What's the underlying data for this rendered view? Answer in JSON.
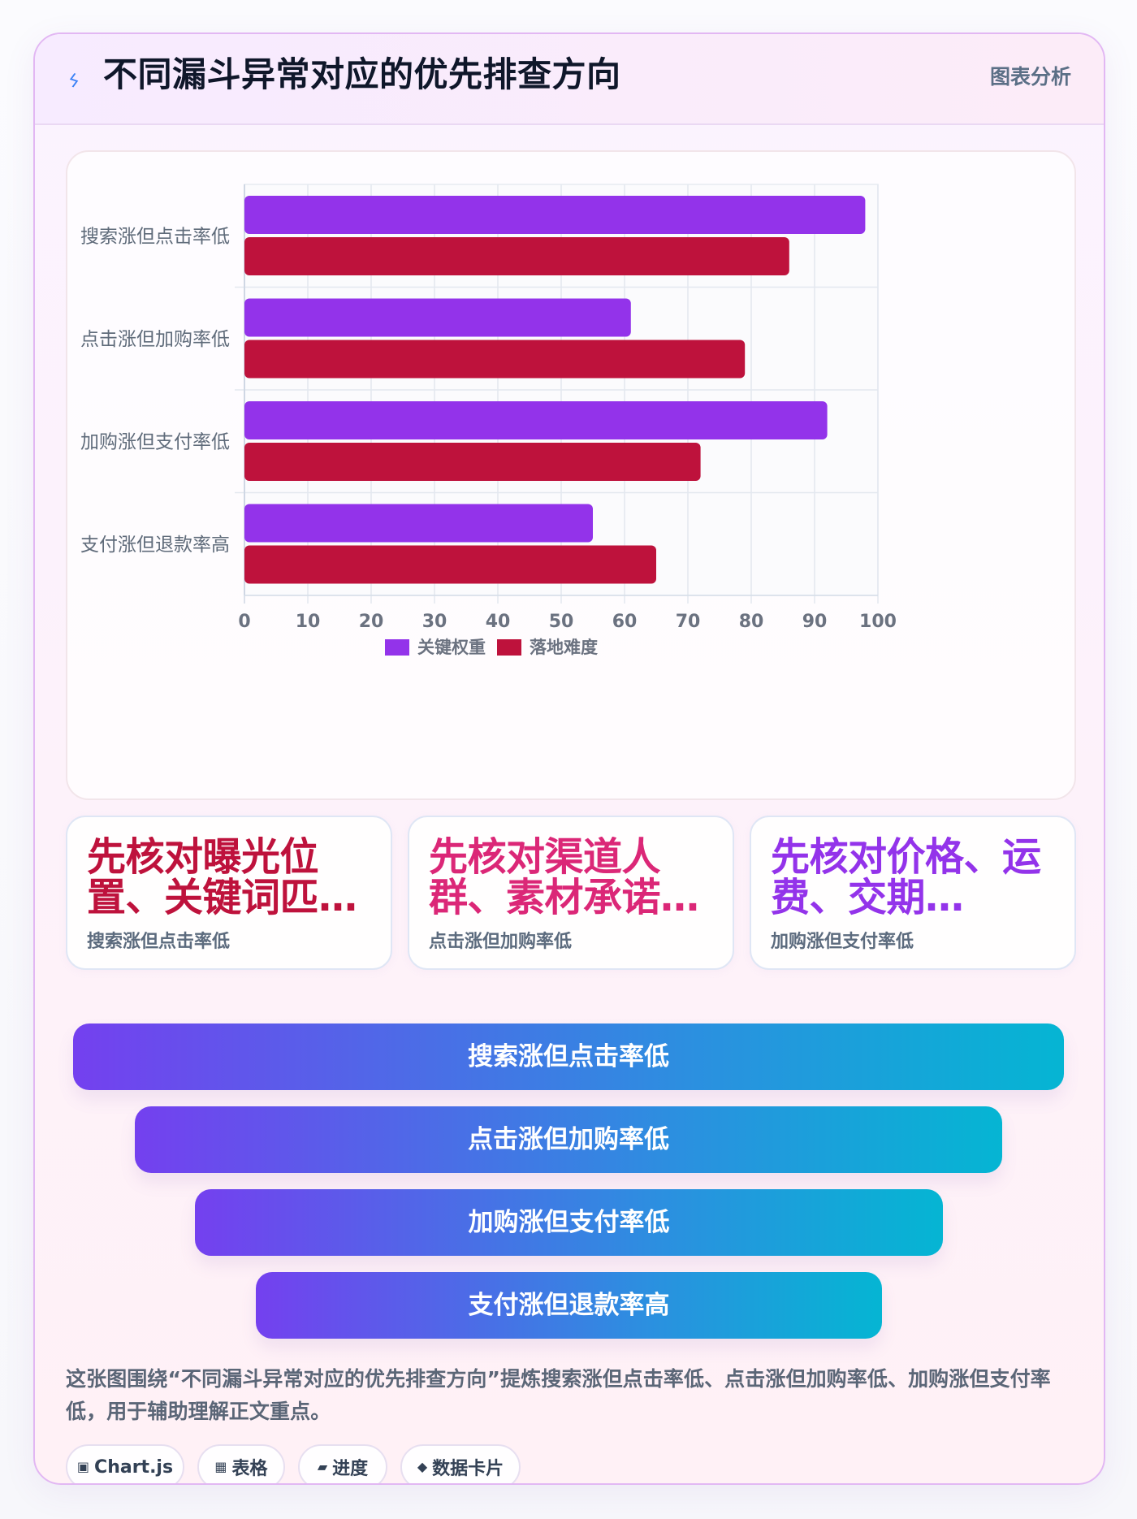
{
  "header": {
    "icon": "lightning-icon",
    "title": "不同漏斗异常对应的优先排查方向",
    "tag": "图表分析"
  },
  "chart_data": {
    "type": "bar",
    "orientation": "horizontal",
    "categories": [
      "搜索涨但点击率低",
      "点击涨但加购率低",
      "加购涨但支付率低",
      "支付涨但退款率高"
    ],
    "series": [
      {
        "name": "关键权重",
        "values": [
          98,
          61,
          92,
          55
        ],
        "color": "#9333ea"
      },
      {
        "name": "落地难度",
        "values": [
          86,
          79,
          72,
          65
        ],
        "color": "#be123c"
      }
    ],
    "x_ticks": [
      0,
      10,
      20,
      30,
      40,
      50,
      60,
      70,
      80,
      90,
      100
    ],
    "xlim": [
      0,
      100
    ],
    "grid": true,
    "legend_position": "bottom-center"
  },
  "insight_cards": [
    {
      "title": "先核对曝光位置、关键词匹…",
      "subtitle": "搜索涨但点击率低",
      "color": "#be123c"
    },
    {
      "title": "先核对渠道人群、素材承诺…",
      "subtitle": "点击涨但加购率低",
      "color": "#db2777"
    },
    {
      "title": "先核对价格、运费、交期…",
      "subtitle": "加购涨但支付率低",
      "color": "#9333ea"
    }
  ],
  "funnel_steps": [
    "搜索涨但点击率低",
    "点击涨但加购率低",
    "加购涨但支付率低",
    "支付涨但退款率高"
  ],
  "description": "这张图围绕“不同漏斗异常对应的优先排查方向”提炼搜索涨但点击率低、点击涨但加购率低、加购涨但支付率低，用于辅助理解正文重点。",
  "chips": [
    {
      "icon": "chart-icon",
      "label": "Chart.js"
    },
    {
      "icon": "table-icon",
      "label": "表格"
    },
    {
      "icon": "progress-icon",
      "label": "进度"
    },
    {
      "icon": "data-card-icon",
      "label": "数据卡片"
    }
  ],
  "colors": {
    "series_1": "#9333ea",
    "series_2": "#be123c",
    "funnel_start": "#7440ef",
    "funnel_end": "#05b5d3"
  }
}
